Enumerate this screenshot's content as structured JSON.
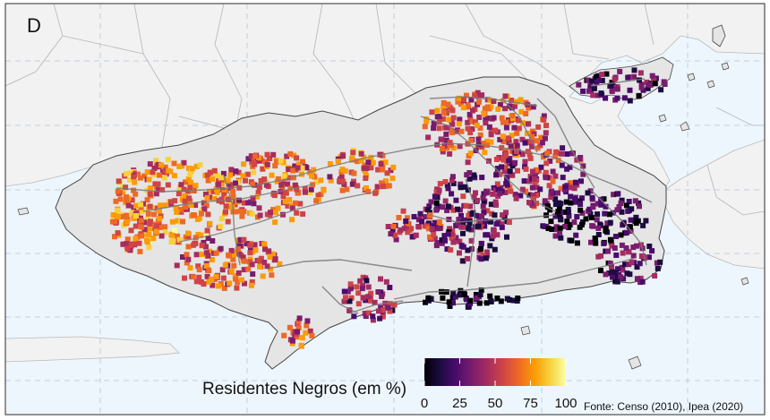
{
  "panel": {
    "letter": "D"
  },
  "legend": {
    "title": "Residentes Negros (em %)",
    "min": 0,
    "max": 100,
    "ticks": [
      "0",
      "25",
      "50",
      "75",
      "100"
    ],
    "tick_values": [
      0,
      25,
      50,
      75,
      100
    ],
    "colormap": [
      "#000004",
      "#1b0c41",
      "#4a0c6b",
      "#781c6d",
      "#a52c60",
      "#cf4446",
      "#ed6925",
      "#fb9b06",
      "#f7d13d",
      "#fcffa4"
    ]
  },
  "source": {
    "text": "Fonte: Censo (2010), Ipea (2020)"
  },
  "colors": {
    "ocean": "#eef6fd",
    "land_outside": "#f2f2f2",
    "municipality": "#e5e5e5",
    "boundary": "#8c8c8c",
    "roads": "#7a7a7a",
    "grid": "#b5c4d6",
    "frame": "#4d4d4d"
  }
}
